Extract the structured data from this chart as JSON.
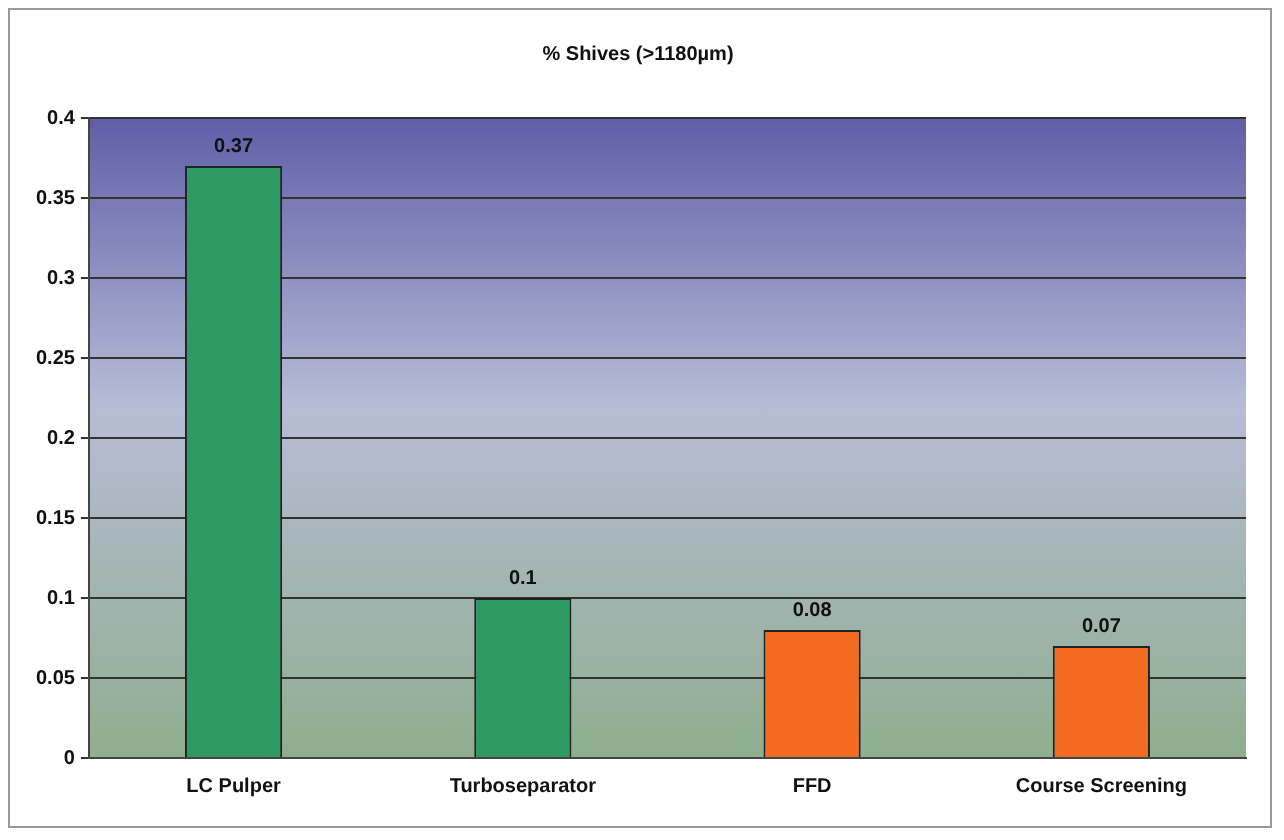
{
  "chart_data": {
    "type": "bar",
    "title": "% Shives (>1180µm)",
    "categories": [
      "LC Pulper",
      "Turboseparator",
      "FFD",
      "Course Screening"
    ],
    "values": [
      0.37,
      0.1,
      0.08,
      0.07
    ],
    "colors": [
      "#2e9a63",
      "#2e9a63",
      "#f26b21",
      "#f26b21"
    ],
    "ylim": [
      0,
      0.4
    ],
    "yticks": [
      0,
      0.05,
      0.1,
      0.15,
      0.2,
      0.25,
      0.3,
      0.35,
      0.4
    ],
    "grid": "y",
    "data_labels": true
  }
}
